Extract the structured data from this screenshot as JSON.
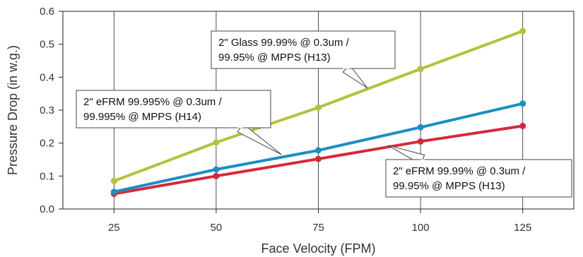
{
  "chart_data": {
    "type": "line",
    "title": "",
    "xlabel": "Face Velocity (FPM)",
    "ylabel": "Pressure Drop (in w.g.)",
    "x": [
      25,
      50,
      75,
      100,
      125
    ],
    "xlim": [
      12.5,
      137.5
    ],
    "ylim": [
      0,
      0.6
    ],
    "xticks": [
      "25",
      "50",
      "75",
      "100",
      "125"
    ],
    "yticks": [
      "0.0",
      "0.1",
      "0.2",
      "0.3",
      "0.4",
      "0.5",
      "0.6"
    ],
    "grid": "vertical",
    "series": [
      {
        "name": "2\" Glass 99.99% @ 0.3um / 99.95% @ MPPS (H13)",
        "color": "#b5c13c",
        "values": [
          0.085,
          0.202,
          0.308,
          0.425,
          0.54
        ],
        "label_lines": [
          "2\" Glass 99.99% @ 0.3um /",
          "99.95% @ MPPS (H13)"
        ]
      },
      {
        "name": "2\" eFRM 99.995% @ 0.3um / 99.995% @ MPPS (H14)",
        "color": "#1b8ec4",
        "values": [
          0.052,
          0.12,
          0.178,
          0.248,
          0.32
        ],
        "label_lines": [
          "2\" eFRM 99.995% @ 0.3um /",
          "99.995% @ MPPS (H14)"
        ]
      },
      {
        "name": "2\" eFRM 99.99% @ 0.3um / 99.95% @ MPPS (H13)",
        "color": "#d42a3c",
        "values": [
          0.046,
          0.1,
          0.152,
          0.205,
          0.252
        ],
        "label_lines": [
          "2\" eFRM 99.99% @ 0.3um /",
          "99.95% @ MPPS (H13)"
        ]
      }
    ]
  }
}
